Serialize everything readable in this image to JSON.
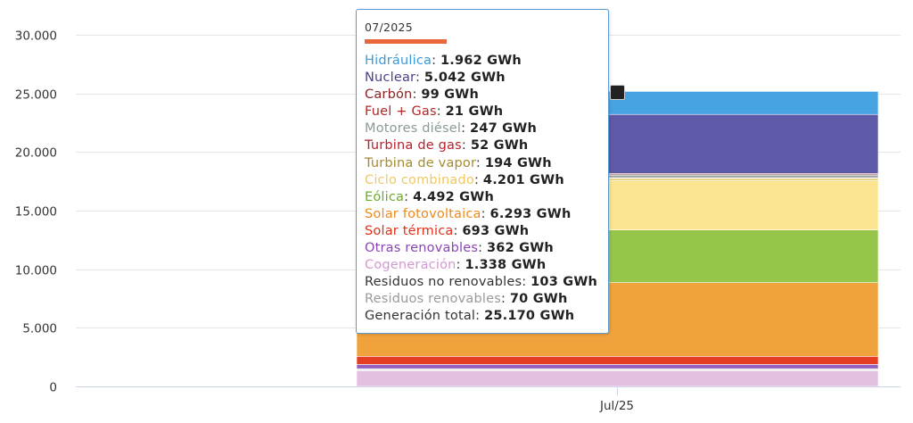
{
  "chart_data": {
    "type": "bar",
    "stacked": true,
    "categories": [
      "Jul/25"
    ],
    "y_ticks": [
      "0",
      "5.000",
      "10.000",
      "15.000",
      "20.000",
      "25.000",
      "30.000"
    ],
    "ylim": [
      0,
      30000
    ],
    "grid": true,
    "series": [
      {
        "name": "Cogeneración",
        "value": 1338,
        "color": "#e3bfe0"
      },
      {
        "name": "Residuos renovables",
        "value": 70,
        "color": "#c4c4c4"
      },
      {
        "name": "Residuos no renovables",
        "value": 103,
        "color": "#d9d9d9"
      },
      {
        "name": "Otras renovables",
        "value": 362,
        "color": "#9460c0"
      },
      {
        "name": "Solar térmica",
        "value": 693,
        "color": "#e63e24"
      },
      {
        "name": "Solar fotovoltaica",
        "value": 6293,
        "color": "#f0a23c"
      },
      {
        "name": "Eólica",
        "value": 4492,
        "color": "#95c64b"
      },
      {
        "name": "Ciclo combinado",
        "value": 4201,
        "color": "#fbe48f"
      },
      {
        "name": "Turbina de vapor",
        "value": 194,
        "color": "#e8d070"
      },
      {
        "name": "Turbina de gas",
        "value": 52,
        "color": "#c0282d"
      },
      {
        "name": "Motores diésel",
        "value": 247,
        "color": "#a0aaa8"
      },
      {
        "name": "Fuel + Gas",
        "value": 21,
        "color": "#b03030"
      },
      {
        "name": "Carbón",
        "value": 99,
        "color": "#8b2020"
      },
      {
        "name": "Nuclear",
        "value": 5042,
        "color": "#5e5aa8"
      },
      {
        "name": "Hidráulica",
        "value": 1962,
        "color": "#48a3e3"
      }
    ]
  },
  "tooltip": {
    "title": "07/2025",
    "accent_color": "#e8673c",
    "rows": [
      {
        "label": "Hidráulica",
        "value": "1.962 GWh",
        "color": "#3b9ad6"
      },
      {
        "label": "Nuclear",
        "value": "5.042 GWh",
        "color": "#4a3f8f"
      },
      {
        "label": "Carbón",
        "value": "99 GWh",
        "color": "#8b1f1f"
      },
      {
        "label": "Fuel + Gas",
        "value": "21 GWh",
        "color": "#b02828"
      },
      {
        "label": "Motores diésel",
        "value": "247 GWh",
        "color": "#8c9a98"
      },
      {
        "label": "Turbina de gas",
        "value": "52 GWh",
        "color": "#b8202a"
      },
      {
        "label": "Turbina de vapor",
        "value": "194 GWh",
        "color": "#a58a2a"
      },
      {
        "label": "Ciclo combinado",
        "value": "4.201 GWh",
        "color": "#f0c860"
      },
      {
        "label": "Eólica",
        "value": "4.492 GWh",
        "color": "#6aaa2a"
      },
      {
        "label": "Solar fotovoltaica",
        "value": "6.293 GWh",
        "color": "#ec8a1c"
      },
      {
        "label": "Solar térmica",
        "value": "693 GWh",
        "color": "#e03018"
      },
      {
        "label": "Otras renovables",
        "value": "362 GWh",
        "color": "#8a44b8"
      },
      {
        "label": "Cogeneración",
        "value": "1.338 GWh",
        "color": "#d49ad0"
      },
      {
        "label": "Residuos no renovables",
        "value": "103 GWh",
        "color": "#333333"
      },
      {
        "label": "Residuos renovables",
        "value": "70 GWh",
        "color": "#999999"
      },
      {
        "label": "Generación total",
        "value": "25.170 GWh",
        "color": "#333333"
      }
    ]
  }
}
